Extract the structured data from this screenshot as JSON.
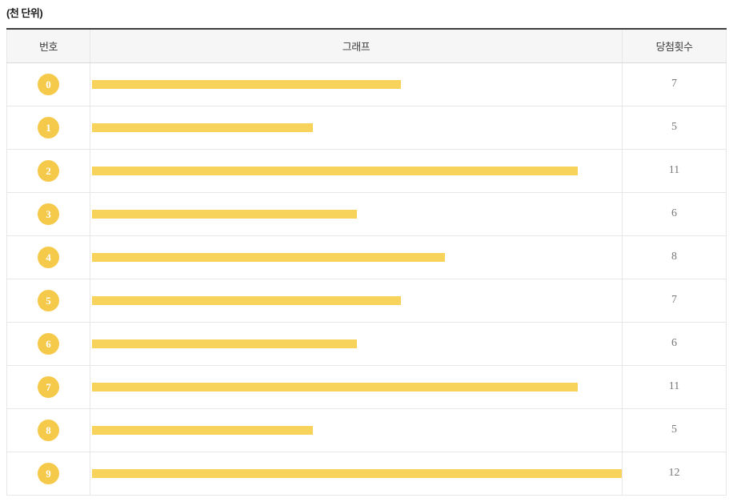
{
  "title": "(천 단위)",
  "table": {
    "columns": [
      {
        "key": "number",
        "label": "번호"
      },
      {
        "key": "graph",
        "label": "그래프"
      },
      {
        "key": "count",
        "label": "당첨횟수"
      }
    ]
  },
  "rows": [
    {
      "number": "0",
      "count": "7"
    },
    {
      "number": "1",
      "count": "5"
    },
    {
      "number": "2",
      "count": "11"
    },
    {
      "number": "3",
      "count": "6"
    },
    {
      "number": "4",
      "count": "8"
    },
    {
      "number": "5",
      "count": "7"
    },
    {
      "number": "6",
      "count": "6"
    },
    {
      "number": "7",
      "count": "11"
    },
    {
      "number": "8",
      "count": "5"
    },
    {
      "number": "9",
      "count": "12"
    }
  ],
  "chart_data": {
    "type": "bar",
    "orientation": "horizontal",
    "title": "(천 단위)",
    "categories": [
      "0",
      "1",
      "2",
      "3",
      "4",
      "5",
      "6",
      "7",
      "8",
      "9"
    ],
    "values": [
      7,
      5,
      11,
      6,
      8,
      7,
      6,
      11,
      5,
      12
    ],
    "xlabel": "당첨횟수",
    "ylabel": "번호",
    "xlim": [
      0,
      12
    ],
    "grid": false,
    "legend": false
  },
  "colors": {
    "bar": "#f8d35b",
    "badge": "#f5c94a",
    "badge_text": "#ffffff",
    "header_bg": "#f6f6f6",
    "top_border": "#3e3e3e",
    "grid_line": "#e7e7e7",
    "header_line": "#d9d9d9",
    "count_text": "#777777",
    "header_text": "#3c3c3c"
  }
}
